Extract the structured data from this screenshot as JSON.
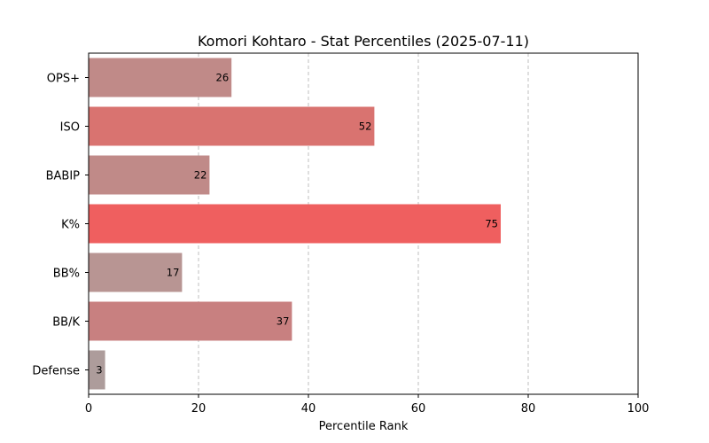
{
  "chart_data": {
    "type": "bar",
    "orientation": "horizontal",
    "title": "Komori Kohtaro - Stat Percentiles (2025-07-11)",
    "xlabel": "Percentile Rank",
    "ylabel": "",
    "xlim": [
      0,
      100
    ],
    "xticks": [
      0,
      20,
      40,
      60,
      80,
      100
    ],
    "grid": "x-dashed",
    "categories": [
      "OPS+",
      "ISO",
      "BABIP",
      "K%",
      "BB%",
      "BB/K",
      "Defense"
    ],
    "values": [
      26,
      52,
      22,
      75,
      17,
      37,
      3
    ],
    "colors": [
      "#c08a88",
      "#d97370",
      "#c08a88",
      "#ef5f5f",
      "#b89593",
      "#c88080",
      "#ad9c9b"
    ]
  }
}
